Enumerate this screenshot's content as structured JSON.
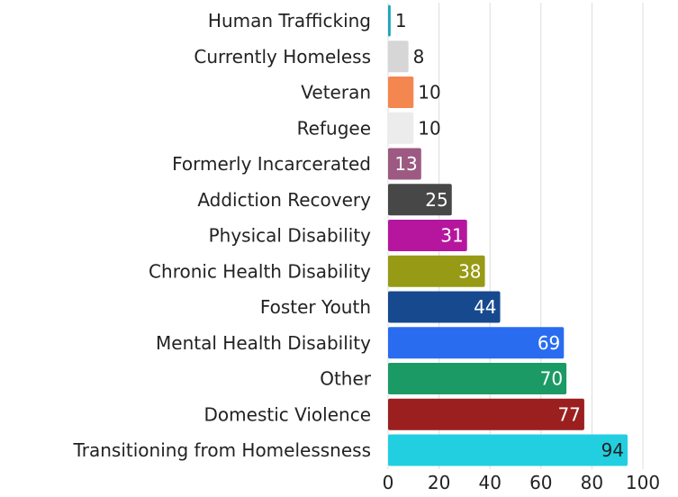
{
  "chart_data": {
    "type": "bar",
    "orientation": "horizontal",
    "categories": [
      "Human Trafficking",
      "Currently Homeless",
      "Veteran",
      "Refugee",
      "Formerly Incarcerated",
      "Addiction Recovery",
      "Physical Disability",
      "Chronic Health Disability",
      "Foster Youth",
      "Mental Health Disability",
      "Other",
      "Domestic Violence",
      "Transitioning from Homelessness"
    ],
    "values": [
      1,
      8,
      10,
      10,
      13,
      25,
      31,
      38,
      44,
      69,
      70,
      77,
      94
    ],
    "data_labels": [
      "1",
      "8",
      "10",
      "10",
      "13",
      "25",
      "31",
      "38",
      "44",
      "69",
      "70",
      "77",
      "94"
    ],
    "colors": [
      "#1aa5b5",
      "#d6d6d6",
      "#f4864f",
      "#ececec",
      "#9c5a82",
      "#474747",
      "#b6169e",
      "#979a14",
      "#17498f",
      "#2a6cf0",
      "#1b9a66",
      "#9b1f1f",
      "#22cfe0"
    ],
    "label_colors": [
      "#222222",
      "#222222",
      "#222222",
      "#222222",
      "#ffffff",
      "#ffffff",
      "#ffffff",
      "#ffffff",
      "#ffffff",
      "#ffffff",
      "#ffffff",
      "#ffffff",
      "#222222"
    ],
    "xlim": [
      0,
      100
    ],
    "xticks": [
      "0",
      "20",
      "40",
      "60",
      "80",
      "100"
    ],
    "xtick_values": [
      0,
      20,
      40,
      60,
      80,
      100
    ],
    "grid": true,
    "legend": "none",
    "title": "",
    "xlabel": "",
    "ylabel": ""
  }
}
